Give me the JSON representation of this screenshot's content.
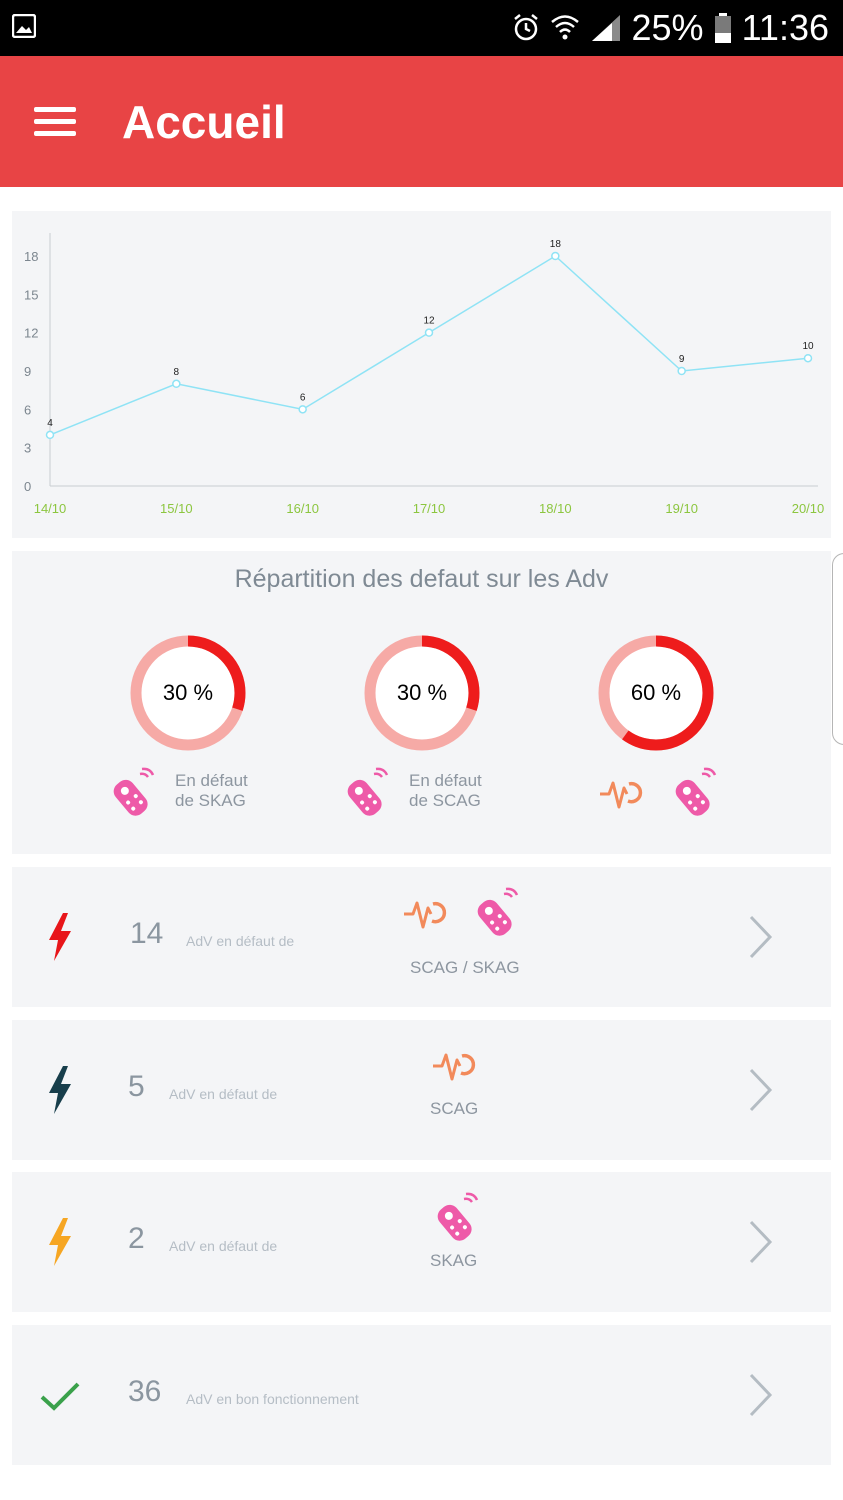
{
  "status_bar": {
    "battery": "25%",
    "time": "11:36"
  },
  "app_bar": {
    "title": "Accueil"
  },
  "chart_data": {
    "type": "line",
    "categories": [
      "14/10",
      "15/10",
      "16/10",
      "17/10",
      "18/10",
      "19/10",
      "20/10"
    ],
    "values": [
      4,
      8,
      6,
      12,
      18,
      9,
      10
    ],
    "yticks": [
      0,
      3,
      6,
      9,
      12,
      15,
      18
    ],
    "ylim": [
      0,
      18
    ],
    "title": "",
    "xlabel": "",
    "ylabel": "",
    "data_labels": true,
    "line_color": "#8fe3f5",
    "xtick_color": "#8cc63f"
  },
  "distribution": {
    "title": "Répartition des defaut sur les Adv",
    "donuts": [
      {
        "value": 30,
        "label": "30 %",
        "text_line1": "En défaut",
        "text_line2": "de SKAG",
        "icons": [
          "remote-icon"
        ]
      },
      {
        "value": 30,
        "label": "30 %",
        "text_line1": "En défaut",
        "text_line2": "de SCAG",
        "icons": [
          "remote-icon"
        ]
      },
      {
        "value": 60,
        "label": "60 %",
        "text_line1": "",
        "text_line2": "",
        "icons": [
          "heartbeat-icon",
          "remote-icon"
        ]
      }
    ],
    "fg_color": "#ee1c1c",
    "bg_color": "#f6aaa6"
  },
  "rows": [
    {
      "count": "14",
      "description": "AdV en défaut de",
      "category": "SCAG / SKAG",
      "bolt_color": "#e8151a",
      "icons": [
        "heartbeat-icon",
        "remote-icon"
      ]
    },
    {
      "count": "5",
      "description": "AdV en défaut de",
      "category": "SCAG",
      "bolt_color": "#173e4b",
      "icons": [
        "heartbeat-icon"
      ]
    },
    {
      "count": "2",
      "description": "AdV en défaut de",
      "category": "SKAG",
      "bolt_color": "#f6a623",
      "icons": [
        "remote-icon"
      ]
    },
    {
      "count": "36",
      "description": "AdV en bon fonctionnement",
      "category": "",
      "status_icon": "check-icon",
      "check_color": "#3aa14b"
    }
  ],
  "colors": {
    "app_bar": "#e84445",
    "card_bg": "#f4f5f7",
    "heartbeat": "#f28a5b",
    "remote": "#ee5aa8"
  }
}
